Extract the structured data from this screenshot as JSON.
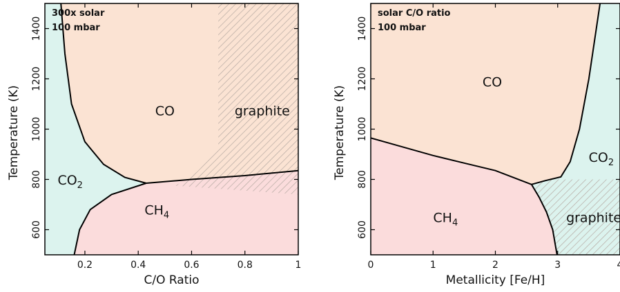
{
  "chart_data": [
    {
      "type": "area",
      "panel": "left",
      "xlabel": "C/O Ratio",
      "ylabel": "Temperature (K)",
      "xlim": [
        0.05,
        1.0
      ],
      "ylim": [
        500,
        1500
      ],
      "xticks": [
        0.2,
        0.4,
        0.6,
        0.8,
        1
      ],
      "xticklabels": [
        "0.2",
        "0.4",
        "0.6",
        "0.8",
        "1"
      ],
      "yticks": [
        600,
        800,
        1000,
        1200,
        1400
      ],
      "yticklabels": [
        "600",
        "800",
        "1000",
        "1200",
        "1400"
      ],
      "annotations": [
        "300x solar",
        "100 mbar"
      ],
      "regions": [
        {
          "name": "CO",
          "label": "CO",
          "sub": "",
          "color": "#fbe3d3",
          "label_at": [
            0.5,
            1055
          ]
        },
        {
          "name": "CO2",
          "label": "CO",
          "sub": "2",
          "color": "#dcf3ee",
          "label_at": [
            0.145,
            780
          ]
        },
        {
          "name": "CH4",
          "label": "CH",
          "sub": "4",
          "color": "#fbdcdc",
          "label_at": [
            0.47,
            660
          ]
        },
        {
          "name": "graphite",
          "label": "graphite",
          "sub": "",
          "hatched": true,
          "label_at": [
            0.865,
            1055
          ]
        }
      ],
      "boundaries": {
        "co_co2": [
          [
            0.11,
            1500
          ],
          [
            0.125,
            1300
          ],
          [
            0.15,
            1100
          ],
          [
            0.2,
            950
          ],
          [
            0.27,
            860
          ],
          [
            0.35,
            808
          ],
          [
            0.43,
            785
          ]
        ],
        "co2_ch4": [
          [
            0.16,
            500
          ],
          [
            0.18,
            600
          ],
          [
            0.22,
            680
          ],
          [
            0.3,
            740
          ],
          [
            0.43,
            785
          ]
        ],
        "co_ch4": [
          [
            0.43,
            785
          ],
          [
            0.6,
            800
          ],
          [
            0.8,
            815
          ],
          [
            1.0,
            835
          ]
        ]
      },
      "graphite_region": [
        [
          0.7,
          1500
        ],
        [
          1.0,
          1500
        ],
        [
          1.0,
          740
        ],
        [
          0.54,
          775
        ],
        [
          0.62,
          830
        ],
        [
          0.7,
          920
        ],
        [
          0.7,
          1500
        ]
      ]
    },
    {
      "type": "area",
      "panel": "right",
      "xlabel": "Metallicity [Fe/H]",
      "ylabel": "Temperature (K)",
      "xlim": [
        0,
        4
      ],
      "ylim": [
        500,
        1500
      ],
      "xticks": [
        0,
        1,
        2,
        3,
        4
      ],
      "xticklabels": [
        "0",
        "1",
        "2",
        "3",
        "4"
      ],
      "yticks": [
        600,
        800,
        1000,
        1200,
        1400
      ],
      "yticklabels": [
        "600",
        "800",
        "1000",
        "1200",
        "1400"
      ],
      "annotations": [
        "solar C/O ratio",
        "100 mbar"
      ],
      "regions": [
        {
          "name": "CO",
          "label": "CO",
          "sub": "",
          "color": "#fbe3d3",
          "label_at": [
            1.95,
            1170
          ]
        },
        {
          "name": "CO2",
          "label": "CO",
          "sub": "2",
          "color": "#dcf3ee",
          "label_at": [
            3.7,
            870
          ]
        },
        {
          "name": "CH4",
          "label": "CH",
          "sub": "4",
          "color": "#fbdcdc",
          "label_at": [
            1.2,
            630
          ]
        },
        {
          "name": "graphite",
          "label": "graphite",
          "sub": "",
          "hatched": true,
          "label_at": [
            3.58,
            630
          ]
        }
      ],
      "boundaries": {
        "co_ch4": [
          [
            0,
            965
          ],
          [
            0.5,
            930
          ],
          [
            1.0,
            895
          ],
          [
            1.5,
            865
          ],
          [
            2.0,
            835
          ],
          [
            2.58,
            780
          ]
        ],
        "ch4_graphite": [
          [
            2.58,
            780
          ],
          [
            2.7,
            730
          ],
          [
            2.82,
            670
          ],
          [
            2.92,
            600
          ],
          [
            2.99,
            500
          ]
        ],
        "co_co2": [
          [
            2.58,
            780
          ],
          [
            2.8,
            795
          ],
          [
            3.05,
            810
          ],
          [
            3.2,
            870
          ],
          [
            3.35,
            1000
          ],
          [
            3.5,
            1200
          ],
          [
            3.68,
            1500
          ]
        ]
      },
      "graphite_region": [
        [
          2.58,
          780
        ],
        [
          2.85,
          800
        ],
        [
          4.0,
          800
        ],
        [
          4.0,
          500
        ],
        [
          2.99,
          500
        ],
        [
          2.92,
          600
        ],
        [
          2.82,
          670
        ],
        [
          2.7,
          730
        ]
      ]
    }
  ]
}
